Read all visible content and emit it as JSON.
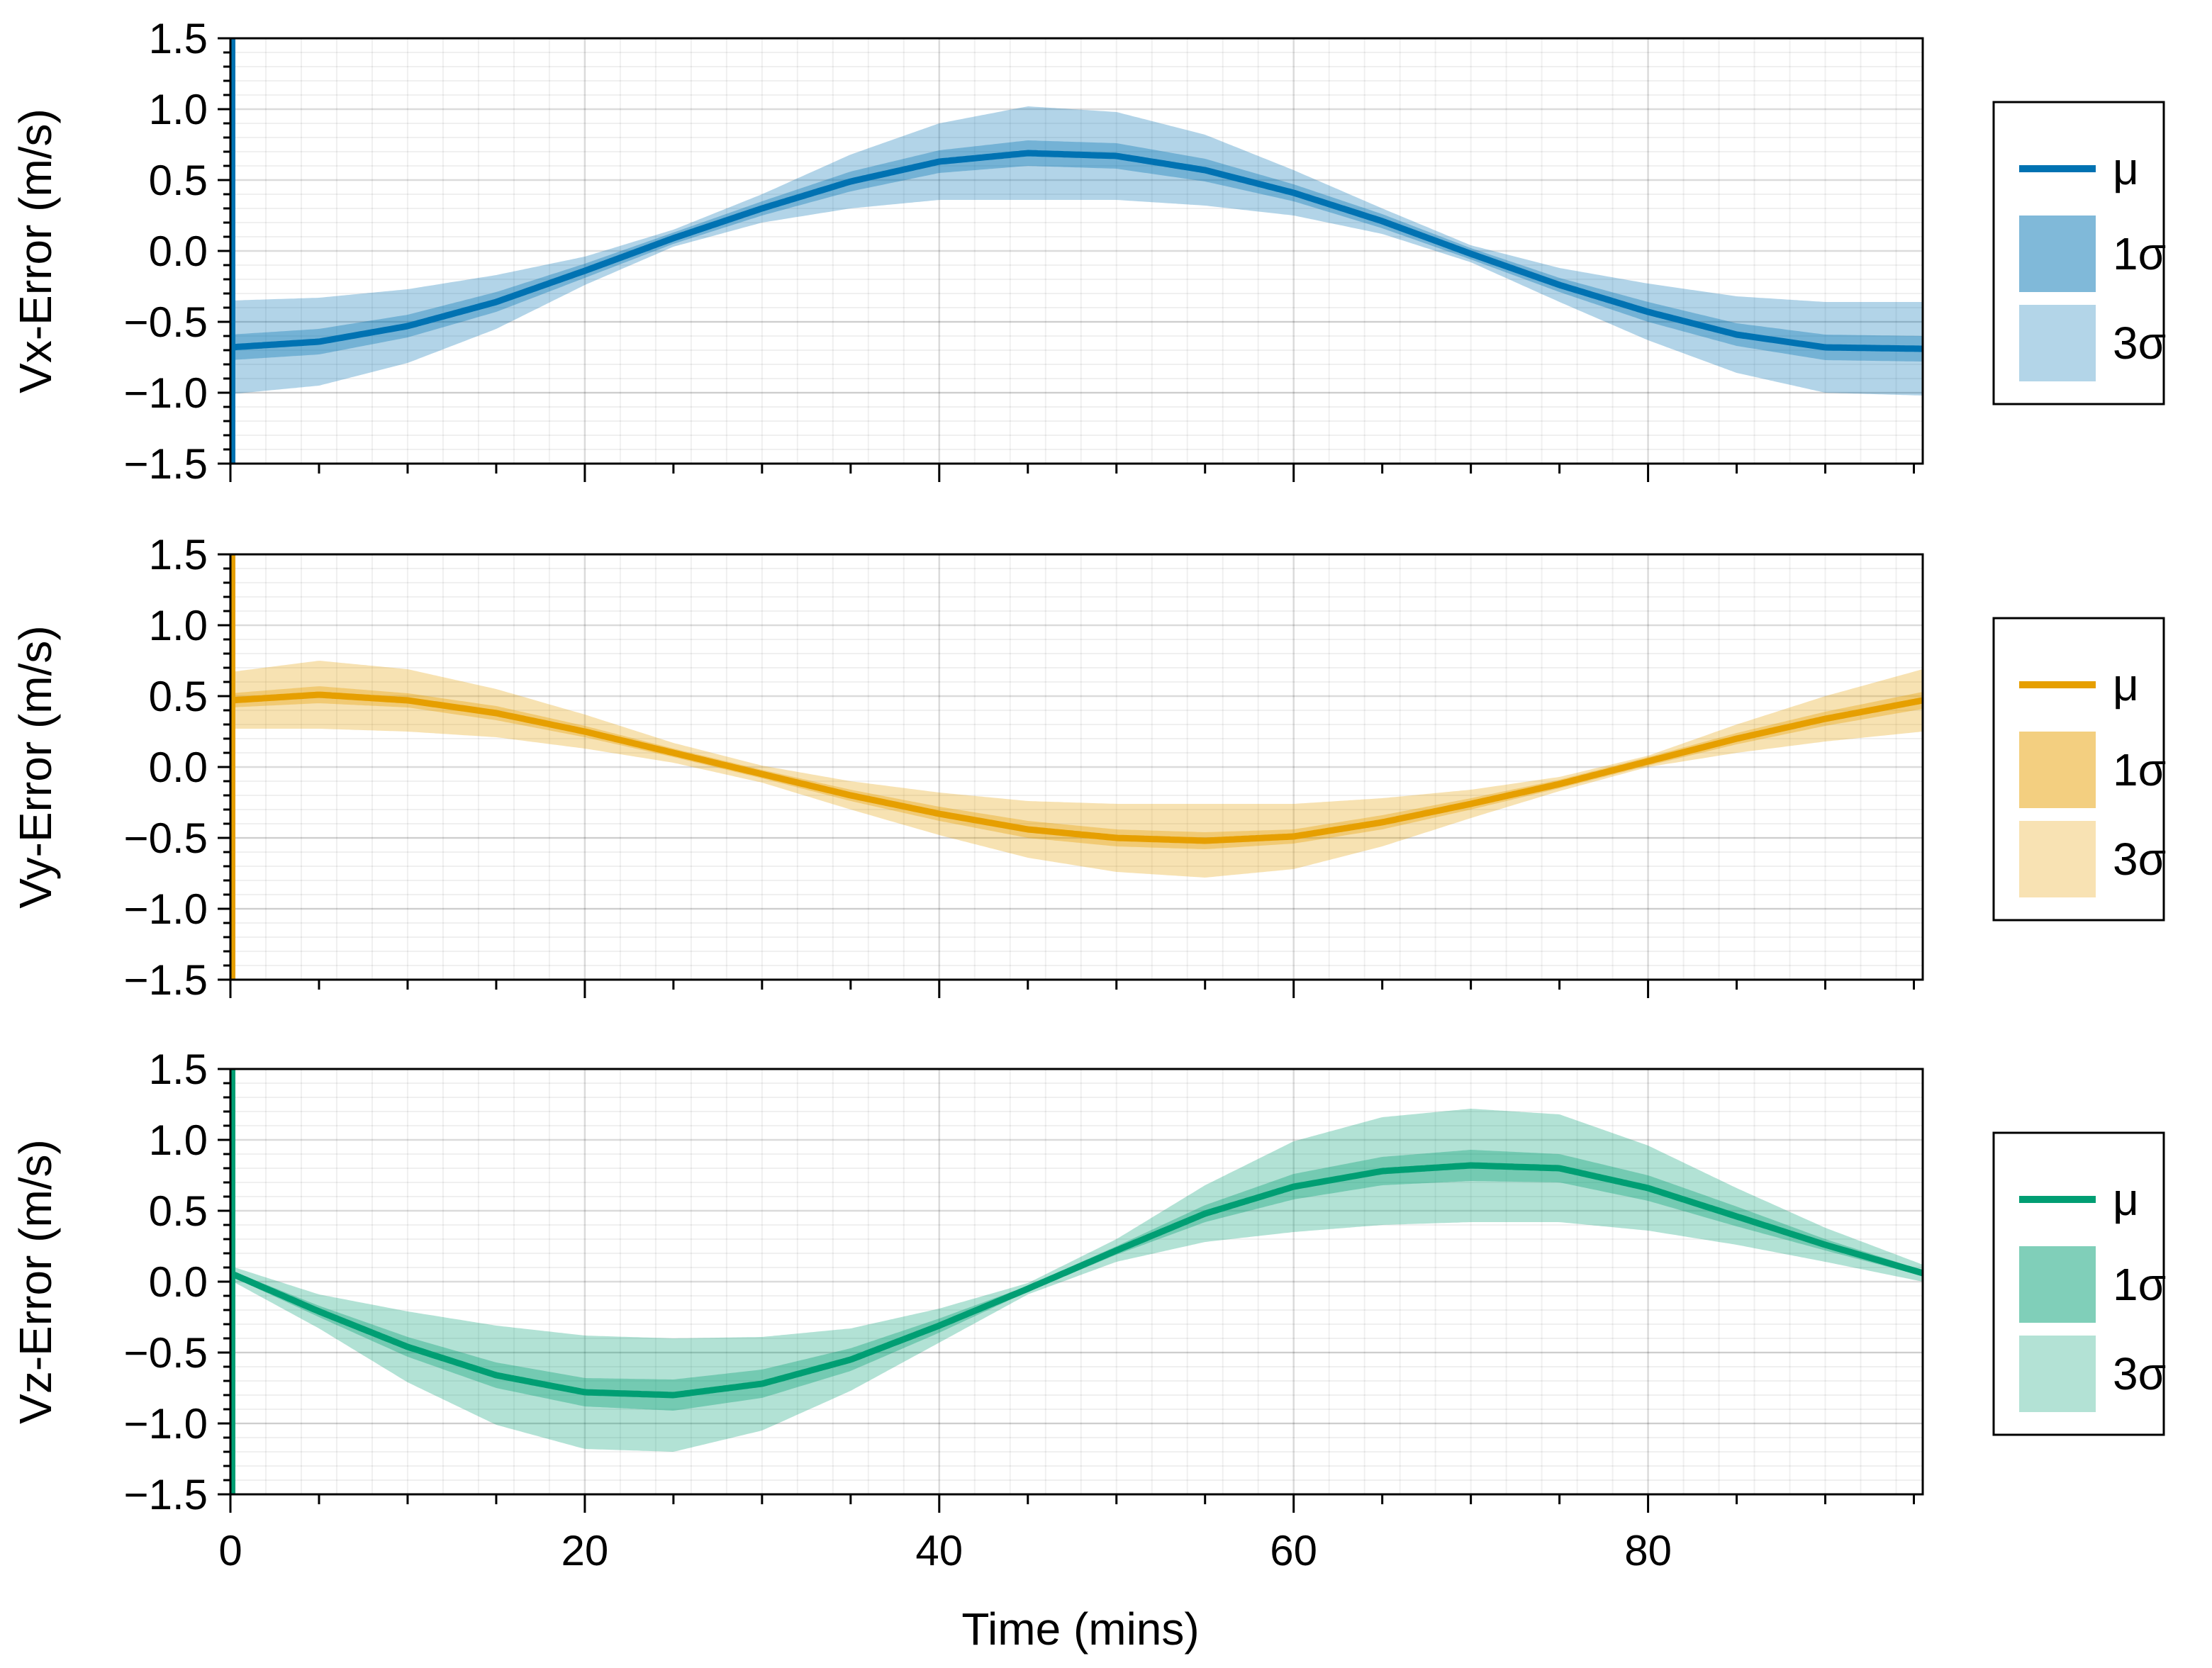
{
  "chart_data": {
    "type": "line",
    "xlabel": "Time (mins)",
    "xlim": [
      0,
      95.5
    ],
    "xticks": [
      0,
      20,
      40,
      60,
      80
    ],
    "x_tick_labels": [
      "0",
      "20",
      "40",
      "60",
      "80"
    ],
    "ylim": [
      -1.5,
      1.5
    ],
    "yticks": [
      -1.5,
      -1.0,
      -0.5,
      0.0,
      0.5,
      1.0,
      1.5
    ],
    "y_tick_labels": [
      "−1.5",
      "−1.0",
      "−0.5",
      "0.0",
      "0.5",
      "1.0",
      "1.5"
    ],
    "grid": true,
    "legend_position": "right",
    "legend_labels": [
      "μ",
      "1σ",
      "3σ"
    ],
    "panels": [
      {
        "name": "vx",
        "ylabel": "Vx-Error (m/s)",
        "color": "#0072b2",
        "x": [
          0,
          5,
          10,
          15,
          20,
          25,
          30,
          35,
          40,
          45,
          50,
          55,
          60,
          65,
          70,
          75,
          80,
          85,
          90,
          95.5
        ],
        "mean": [
          -0.68,
          -0.64,
          -0.53,
          -0.36,
          -0.14,
          0.09,
          0.3,
          0.49,
          0.63,
          0.69,
          0.67,
          0.57,
          0.41,
          0.21,
          -0.02,
          -0.24,
          -0.43,
          -0.59,
          -0.68,
          -0.69
        ],
        "sigma1": [
          0.09,
          0.09,
          0.08,
          0.07,
          0.05,
          0.04,
          0.05,
          0.07,
          0.08,
          0.09,
          0.09,
          0.08,
          0.06,
          0.05,
          0.04,
          0.05,
          0.07,
          0.08,
          0.09,
          0.09
        ],
        "sigma3": [
          0.33,
          0.31,
          0.26,
          0.19,
          0.1,
          0.06,
          0.1,
          0.19,
          0.27,
          0.33,
          0.31,
          0.25,
          0.16,
          0.09,
          0.06,
          0.12,
          0.2,
          0.27,
          0.32,
          0.33
        ]
      },
      {
        "name": "vy",
        "ylabel": "Vy-Error (m/s)",
        "color": "#e69f00",
        "x": [
          0,
          5,
          10,
          15,
          20,
          25,
          30,
          35,
          40,
          45,
          50,
          55,
          60,
          65,
          70,
          75,
          80,
          85,
          90,
          95.5
        ],
        "mean": [
          0.47,
          0.51,
          0.47,
          0.38,
          0.25,
          0.1,
          -0.05,
          -0.2,
          -0.33,
          -0.44,
          -0.5,
          -0.52,
          -0.49,
          -0.39,
          -0.26,
          -0.12,
          0.04,
          0.2,
          0.34,
          0.47
        ],
        "sigma1": [
          0.05,
          0.06,
          0.05,
          0.05,
          0.04,
          0.03,
          0.03,
          0.04,
          0.05,
          0.06,
          0.06,
          0.06,
          0.05,
          0.05,
          0.04,
          0.03,
          0.03,
          0.04,
          0.05,
          0.06
        ],
        "sigma3": [
          0.2,
          0.24,
          0.22,
          0.17,
          0.12,
          0.07,
          0.06,
          0.1,
          0.15,
          0.2,
          0.24,
          0.26,
          0.23,
          0.17,
          0.1,
          0.05,
          0.04,
          0.1,
          0.16,
          0.22
        ]
      },
      {
        "name": "vz",
        "ylabel": "Vz-Error (m/s)",
        "color": "#009e73",
        "x": [
          0,
          5,
          10,
          15,
          20,
          25,
          30,
          35,
          40,
          45,
          50,
          55,
          60,
          65,
          70,
          75,
          80,
          85,
          90,
          95.5
        ],
        "mean": [
          0.06,
          -0.21,
          -0.46,
          -0.66,
          -0.78,
          -0.8,
          -0.72,
          -0.55,
          -0.31,
          -0.05,
          0.22,
          0.48,
          0.67,
          0.78,
          0.82,
          0.8,
          0.66,
          0.46,
          0.26,
          0.06
        ],
        "sigma1": [
          0.02,
          0.04,
          0.07,
          0.09,
          0.1,
          0.11,
          0.1,
          0.08,
          0.05,
          0.02,
          0.03,
          0.06,
          0.09,
          0.1,
          0.11,
          0.1,
          0.09,
          0.07,
          0.04,
          0.02
        ],
        "sigma3": [
          0.05,
          0.12,
          0.25,
          0.35,
          0.4,
          0.4,
          0.33,
          0.22,
          0.12,
          0.04,
          0.08,
          0.2,
          0.32,
          0.38,
          0.4,
          0.38,
          0.3,
          0.2,
          0.12,
          0.06
        ]
      }
    ]
  }
}
